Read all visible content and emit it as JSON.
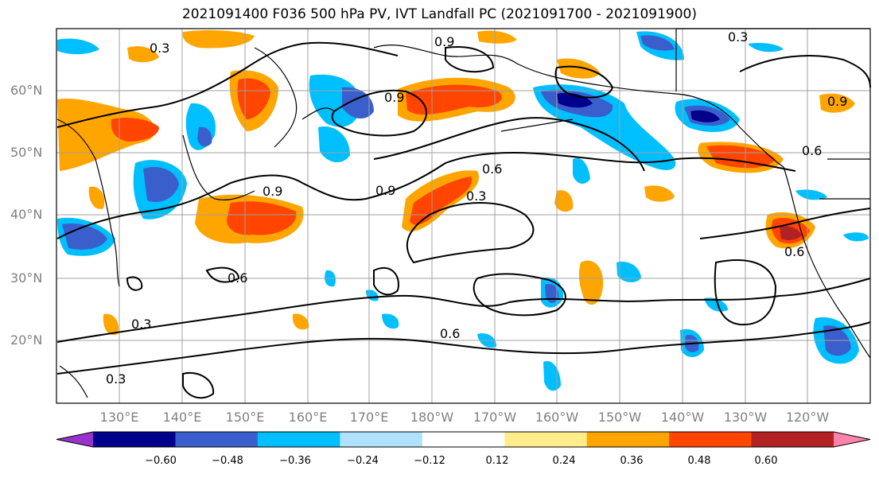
{
  "title": "2021091400 F036 500 hPa PV, IVT Landfall PC (2021091700 - 2021091900)",
  "lat_labels": [
    "60°N",
    "50°N",
    "40°N",
    "30°N",
    "20°N"
  ],
  "lon_labels": [
    "130°E",
    "140°E",
    "150°E",
    "160°E",
    "170°E",
    "180°W",
    "170°W",
    "160°W",
    "150°W",
    "140°W",
    "130°W",
    "120°W"
  ],
  "contour_labels": [
    "0.3",
    "0.6",
    "0.9"
  ],
  "colorbar": {
    "ticks": [
      "−0.60",
      "−0.48",
      "−0.36",
      "−0.24",
      "−0.12",
      "0.12",
      "0.24",
      "0.36",
      "0.48",
      "0.60"
    ],
    "colors": [
      "#9932cc",
      "#00008b",
      "#3a5fcd",
      "#00bfff",
      "#b0e2ff",
      "#ffffff",
      "#ffec8b",
      "#ffa500",
      "#ff4500",
      "#b22222",
      "#ff82ab"
    ]
  },
  "map_colors": {
    "red": "#ff4500",
    "orange": "#ffa500",
    "yellow": "#ffec8b",
    "darkred": "#b22222",
    "blue": "#3a5fcd",
    "navy": "#00008b",
    "cyan": "#00bfff",
    "lightblue": "#b0e2ff"
  }
}
